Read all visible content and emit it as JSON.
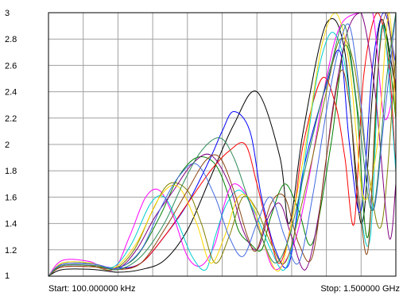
{
  "chart_data": {
    "type": "line",
    "title": "",
    "xlabel": "",
    "ylabel": "",
    "start_label": "Start: 100.000000 kHz",
    "stop_label": "Stop: 1.500000 GHz",
    "x_range_mhz": [
      0.1,
      1500
    ],
    "ylim": [
      1,
      3
    ],
    "y_ticks": [
      "1",
      "1.2",
      "1.4",
      "1.6",
      "1.8",
      "2",
      "2.2",
      "2.4",
      "2.6",
      "2.8",
      "3"
    ],
    "x_gridlines": 10,
    "grid": true,
    "legend": "none",
    "series": [
      {
        "color": "#000000",
        "x": [
          0.1,
          60,
          200,
          300,
          400,
          500,
          600,
          700,
          800,
          900,
          1000,
          1040,
          1100,
          1200,
          1280,
          1350,
          1400,
          1440,
          1500
        ],
        "y": [
          1.0,
          1.05,
          1.05,
          1.03,
          1.05,
          1.12,
          1.35,
          1.75,
          2.15,
          2.4,
          1.9,
          1.4,
          2.1,
          2.92,
          2.7,
          1.4,
          2.4,
          2.95,
          2.4
        ]
      },
      {
        "color": "#0000FF",
        "x": [
          0.1,
          60,
          200,
          300,
          400,
          500,
          600,
          700,
          750,
          800,
          870,
          920,
          980,
          1040,
          1100,
          1200,
          1260,
          1300,
          1350,
          1400,
          1450,
          1500
        ],
        "y": [
          1.0,
          1.08,
          1.08,
          1.06,
          1.1,
          1.3,
          1.55,
          1.9,
          2.1,
          2.25,
          2.1,
          1.6,
          1.2,
          1.1,
          1.8,
          2.45,
          2.7,
          2.0,
          1.5,
          2.6,
          3.0,
          2.6
        ]
      },
      {
        "color": "#008000",
        "x": [
          0.1,
          60,
          180,
          280,
          380,
          480,
          560,
          640,
          720,
          780,
          820,
          870,
          920,
          960,
          1020,
          1080,
          1140,
          1220,
          1280,
          1330,
          1380,
          1440,
          1500
        ],
        "y": [
          1.0,
          1.1,
          1.1,
          1.06,
          1.15,
          1.45,
          1.75,
          1.9,
          1.85,
          1.6,
          1.35,
          1.25,
          1.2,
          1.45,
          1.7,
          1.5,
          1.25,
          2.0,
          2.75,
          2.3,
          1.3,
          2.9,
          2.2
        ]
      },
      {
        "color": "#FF0000",
        "x": [
          0.1,
          60,
          200,
          300,
          400,
          500,
          600,
          700,
          780,
          850,
          900,
          950,
          1000,
          1060,
          1100,
          1180,
          1240,
          1280,
          1320,
          1360,
          1420,
          1470,
          1500
        ],
        "y": [
          1.0,
          1.07,
          1.07,
          1.05,
          1.1,
          1.3,
          1.55,
          1.8,
          1.95,
          2.0,
          1.7,
          1.35,
          1.1,
          1.5,
          2.0,
          2.5,
          2.3,
          1.9,
          1.4,
          2.5,
          3.0,
          2.6,
          1.8
        ]
      },
      {
        "color": "#FF00FF",
        "x": [
          0.1,
          60,
          180,
          280,
          350,
          420,
          480,
          540,
          600,
          660,
          720,
          760,
          800,
          860,
          920,
          980,
          1060,
          1120,
          1200,
          1260,
          1340,
          1400,
          1450,
          1500
        ],
        "y": [
          1.0,
          1.12,
          1.11,
          1.05,
          1.3,
          1.6,
          1.65,
          1.45,
          1.15,
          1.08,
          1.25,
          1.55,
          1.7,
          1.6,
          1.3,
          1.05,
          1.25,
          1.7,
          2.5,
          2.9,
          3.0,
          3.0,
          2.2,
          2.5
        ]
      },
      {
        "color": "#00CED1",
        "x": [
          0.1,
          60,
          180,
          280,
          360,
          440,
          500,
          560,
          620,
          680,
          720,
          770,
          830,
          900,
          960,
          1020,
          1070,
          1120,
          1170,
          1230,
          1290,
          1340,
          1390,
          1440,
          1500
        ],
        "y": [
          1.0,
          1.1,
          1.1,
          1.07,
          1.25,
          1.55,
          1.6,
          1.4,
          1.15,
          1.05,
          1.3,
          1.55,
          1.65,
          1.45,
          1.2,
          1.05,
          1.4,
          2.05,
          2.6,
          2.85,
          2.5,
          1.6,
          1.3,
          2.9,
          1.8
        ]
      },
      {
        "color": "#808000",
        "x": [
          0.1,
          60,
          180,
          280,
          370,
          450,
          520,
          600,
          660,
          720,
          780,
          840,
          900,
          960,
          1020,
          1080,
          1140,
          1200,
          1260,
          1320,
          1380,
          1440,
          1500
        ],
        "y": [
          1.0,
          1.08,
          1.08,
          1.05,
          1.2,
          1.5,
          1.7,
          1.65,
          1.4,
          1.1,
          1.3,
          1.6,
          1.5,
          1.25,
          1.1,
          1.45,
          1.9,
          2.4,
          2.8,
          2.6,
          1.8,
          1.4,
          2.7
        ]
      },
      {
        "color": "#800080",
        "x": [
          0.1,
          60,
          200,
          300,
          380,
          460,
          540,
          620,
          700,
          780,
          840,
          900,
          950,
          1000,
          1050,
          1110,
          1170,
          1230,
          1290,
          1350,
          1410,
          1470,
          1500
        ],
        "y": [
          1.0,
          1.09,
          1.09,
          1.06,
          1.2,
          1.45,
          1.65,
          1.85,
          1.92,
          1.7,
          1.35,
          1.2,
          1.45,
          1.55,
          1.3,
          1.05,
          1.5,
          2.3,
          2.85,
          3.0,
          2.4,
          1.3,
          1.7
        ]
      },
      {
        "color": "#FFD700",
        "x": [
          0.1,
          60,
          180,
          280,
          380,
          480,
          560,
          640,
          700,
          760,
          820,
          880,
          940,
          1000,
          1060,
          1120,
          1180,
          1240,
          1300,
          1360,
          1420,
          1470,
          1500
        ],
        "y": [
          1.0,
          1.1,
          1.1,
          1.06,
          1.25,
          1.6,
          1.68,
          1.4,
          1.1,
          1.3,
          1.6,
          1.55,
          1.2,
          1.05,
          1.5,
          2.1,
          2.75,
          3.0,
          2.6,
          1.6,
          2.0,
          3.0,
          2.2
        ]
      },
      {
        "color": "#8B4513",
        "x": [
          0.1,
          60,
          200,
          300,
          400,
          500,
          600,
          680,
          740,
          800,
          860,
          900,
          960,
          1020,
          1080,
          1140,
          1200,
          1260,
          1300,
          1340,
          1380,
          1420,
          1460,
          1500
        ],
        "y": [
          1.0,
          1.07,
          1.07,
          1.05,
          1.1,
          1.35,
          1.65,
          1.88,
          1.9,
          1.65,
          1.3,
          1.2,
          1.55,
          1.6,
          1.25,
          1.15,
          1.9,
          2.55,
          2.3,
          1.6,
          1.2,
          2.5,
          3.0,
          2.4
        ]
      },
      {
        "color": "#4169E1",
        "x": [
          0.1,
          60,
          200,
          300,
          400,
          480,
          560,
          640,
          720,
          780,
          840,
          900,
          960,
          1020,
          1080,
          1140,
          1200,
          1250,
          1300,
          1350,
          1400,
          1450,
          1500
        ],
        "y": [
          1.0,
          1.09,
          1.09,
          1.06,
          1.2,
          1.5,
          1.75,
          1.85,
          1.6,
          1.3,
          1.15,
          1.4,
          1.6,
          1.3,
          1.1,
          1.6,
          2.25,
          2.7,
          2.9,
          2.3,
          1.5,
          2.2,
          3.0
        ]
      },
      {
        "color": "#2E8B57",
        "x": [
          0.1,
          60,
          200,
          300,
          400,
          500,
          580,
          660,
          740,
          800,
          860,
          920,
          980,
          1040,
          1100,
          1160,
          1220,
          1280,
          1340,
          1400,
          1460,
          1500
        ],
        "y": [
          1.0,
          1.08,
          1.08,
          1.05,
          1.15,
          1.4,
          1.7,
          1.95,
          2.05,
          1.9,
          1.6,
          1.3,
          1.1,
          1.3,
          1.75,
          2.2,
          2.6,
          2.9,
          2.2,
          1.5,
          2.5,
          3.0
        ]
      }
    ]
  }
}
